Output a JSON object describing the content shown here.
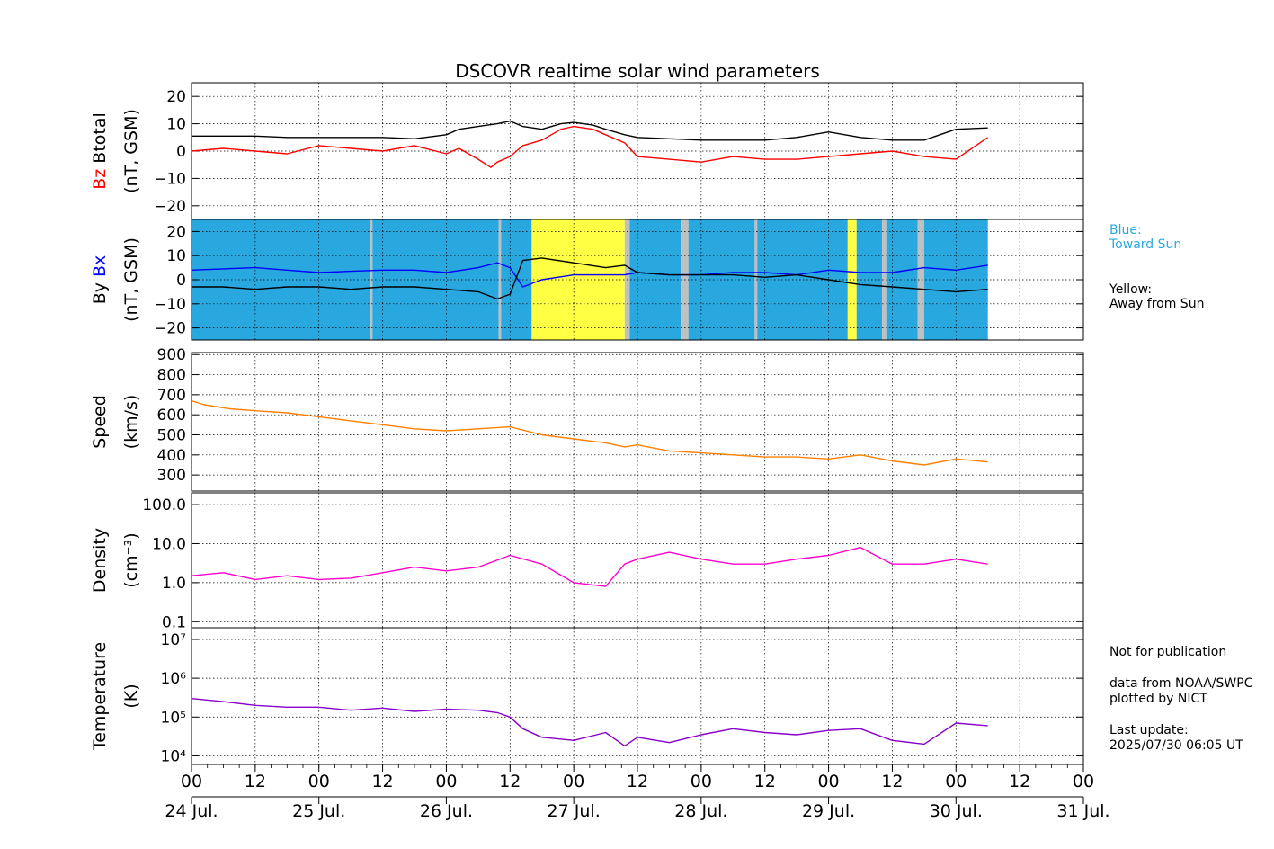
{
  "chart_data": {
    "type": "line",
    "title": "DSCOVR realtime solar wind parameters",
    "x_axis": {
      "hour_ticks": [
        "00",
        "12",
        "00",
        "12",
        "00",
        "12",
        "00",
        "12",
        "00",
        "12",
        "00",
        "12",
        "00",
        "12",
        "00"
      ],
      "day_labels": [
        "24 Jul.",
        "25 Jul.",
        "26 Jul.",
        "27 Jul.",
        "28 Jul.",
        "29 Jul.",
        "30 Jul.",
        "31 Jul."
      ],
      "range_days": [
        0,
        7
      ]
    },
    "panels": [
      {
        "id": "mag-total",
        "ylabel_parts": [
          {
            "text": "Bz",
            "color": "#ff0000"
          },
          {
            "text": "Btotal",
            "color": "#000000"
          }
        ],
        "ylabel_unit": "(nT, GSM)",
        "ylim": [
          -25,
          25
        ],
        "yticks": [
          -20,
          -10,
          0,
          10,
          20
        ],
        "ytick_labels": [
          "−20",
          "−10",
          "0",
          "10",
          "20"
        ],
        "series": [
          {
            "name": "Btotal",
            "color": "#000000",
            "x": [
              0,
              0.25,
              0.5,
              0.75,
              1,
              1.25,
              1.5,
              1.75,
              2,
              2.1,
              2.25,
              2.4,
              2.5,
              2.6,
              2.75,
              2.9,
              3,
              3.15,
              3.25,
              3.4,
              3.5,
              3.75,
              4,
              4.25,
              4.5,
              4.75,
              5,
              5.25,
              5.5,
              5.75,
              6,
              6.25
            ],
            "y": [
              5.5,
              5.5,
              5.5,
              5,
              5,
              5,
              5,
              4.5,
              6,
              8,
              9,
              10,
              11,
              9,
              8,
              10,
              10.5,
              9.5,
              8,
              6,
              5,
              4.5,
              4,
              4,
              4,
              5,
              7,
              5,
              4,
              4,
              8,
              8.5
            ]
          },
          {
            "name": "Bz",
            "color": "#ff0000",
            "x": [
              0,
              0.25,
              0.5,
              0.75,
              1,
              1.25,
              1.5,
              1.75,
              2,
              2.1,
              2.25,
              2.35,
              2.4,
              2.5,
              2.6,
              2.75,
              2.9,
              3,
              3.15,
              3.25,
              3.4,
              3.5,
              3.75,
              4,
              4.25,
              4.5,
              4.75,
              5,
              5.25,
              5.5,
              5.75,
              6,
              6.25
            ],
            "y": [
              0,
              1,
              0,
              -1,
              2,
              1,
              0,
              2,
              -1,
              1,
              -3,
              -6,
              -4,
              -2,
              2,
              4,
              8,
              9,
              8,
              6,
              3,
              -2,
              -3,
              -4,
              -2,
              -3,
              -3,
              -2,
              -1,
              0,
              -2,
              -3,
              5
            ]
          }
        ]
      },
      {
        "id": "mag-xy",
        "ylabel_parts": [
          {
            "text": "By",
            "color": "#000000"
          },
          {
            "text": "Bx",
            "color": "#0000ff"
          }
        ],
        "ylabel_unit": "(nT, GSM)",
        "ylim": [
          -25,
          25
        ],
        "yticks": [
          -20,
          -10,
          0,
          10,
          20
        ],
        "ytick_labels": [
          "−20",
          "−10",
          "0",
          "10",
          "20"
        ],
        "sector_colors": {
          "toward": "#29a8e0",
          "away": "#ffff44",
          "gap": "#c0c0c0"
        },
        "sectors": [
          {
            "start": 0,
            "end": 1.4,
            "kind": "toward"
          },
          {
            "start": 1.4,
            "end": 1.42,
            "kind": "gap"
          },
          {
            "start": 1.42,
            "end": 2.41,
            "kind": "toward"
          },
          {
            "start": 2.41,
            "end": 2.43,
            "kind": "gap"
          },
          {
            "start": 2.43,
            "end": 2.67,
            "kind": "toward"
          },
          {
            "start": 2.67,
            "end": 3.4,
            "kind": "away"
          },
          {
            "start": 3.4,
            "end": 3.44,
            "kind": "gap"
          },
          {
            "start": 3.44,
            "end": 3.84,
            "kind": "toward"
          },
          {
            "start": 3.84,
            "end": 3.9,
            "kind": "gap"
          },
          {
            "start": 3.9,
            "end": 4.42,
            "kind": "toward"
          },
          {
            "start": 4.42,
            "end": 4.44,
            "kind": "gap"
          },
          {
            "start": 4.44,
            "end": 5.15,
            "kind": "toward"
          },
          {
            "start": 5.15,
            "end": 5.22,
            "kind": "away"
          },
          {
            "start": 5.22,
            "end": 5.42,
            "kind": "toward"
          },
          {
            "start": 5.42,
            "end": 5.46,
            "kind": "gap"
          },
          {
            "start": 5.46,
            "end": 5.7,
            "kind": "toward"
          },
          {
            "start": 5.7,
            "end": 5.75,
            "kind": "gap"
          },
          {
            "start": 5.75,
            "end": 6.25,
            "kind": "toward"
          }
        ],
        "series": [
          {
            "name": "Bx",
            "color": "#0000ff",
            "x": [
              0,
              0.25,
              0.5,
              0.75,
              1,
              1.25,
              1.5,
              1.75,
              2,
              2.25,
              2.4,
              2.5,
              2.6,
              2.75,
              3,
              3.25,
              3.4,
              3.5,
              3.75,
              4,
              4.25,
              4.5,
              4.75,
              5,
              5.25,
              5.5,
              5.75,
              6,
              6.25
            ],
            "y": [
              4,
              4.5,
              5,
              4,
              3,
              3.5,
              4,
              4,
              3,
              5,
              7,
              5,
              -3,
              0,
              2,
              2,
              2,
              3,
              2,
              2,
              3,
              3,
              2,
              4,
              3,
              3,
              5,
              4,
              6
            ]
          },
          {
            "name": "By",
            "color": "#000000",
            "x": [
              0,
              0.25,
              0.5,
              0.75,
              1,
              1.25,
              1.5,
              1.75,
              2,
              2.25,
              2.4,
              2.5,
              2.6,
              2.75,
              3,
              3.25,
              3.4,
              3.5,
              3.75,
              4,
              4.25,
              4.5,
              4.75,
              5,
              5.25,
              5.5,
              5.75,
              6,
              6.25
            ],
            "y": [
              -3,
              -3,
              -4,
              -3,
              -3,
              -4,
              -3,
              -3,
              -4,
              -5,
              -8,
              -6,
              8,
              9,
              7,
              5,
              6,
              3,
              2,
              2,
              2,
              1,
              2,
              0,
              -2,
              -3,
              -4,
              -5,
              -4
            ]
          }
        ]
      },
      {
        "id": "speed",
        "ylabel_parts": [
          {
            "text": "Speed",
            "color": "#000000"
          }
        ],
        "ylabel_unit": "(km/s)",
        "ylim": [
          220,
          910
        ],
        "yticks": [
          300,
          400,
          500,
          600,
          700,
          800,
          900
        ],
        "ytick_labels": [
          "300",
          "400",
          "500",
          "600",
          "700",
          "800",
          "900"
        ],
        "series": [
          {
            "name": "Speed",
            "color": "#ff8000",
            "x": [
              0,
              0.1,
              0.3,
              0.5,
              0.75,
              1,
              1.25,
              1.5,
              1.75,
              2,
              2.25,
              2.5,
              2.75,
              3,
              3.25,
              3.4,
              3.5,
              3.75,
              4,
              4.25,
              4.5,
              4.75,
              5,
              5.25,
              5.5,
              5.75,
              6,
              6.25
            ],
            "y": [
              670,
              650,
              630,
              620,
              610,
              590,
              570,
              550,
              530,
              520,
              530,
              540,
              500,
              480,
              460,
              440,
              450,
              420,
              410,
              400,
              390,
              390,
              380,
              400,
              370,
              350,
              380,
              365
            ]
          }
        ]
      },
      {
        "id": "density",
        "log": true,
        "ylabel_parts": [
          {
            "text": "Density",
            "color": "#000000"
          }
        ],
        "ylabel_unit": "(cm⁻³)",
        "ylim": [
          0.07,
          200
        ],
        "yticks": [
          0.1,
          1,
          10,
          100
        ],
        "ytick_labels": [
          "0.1",
          "1.0",
          "10.0",
          "100.0"
        ],
        "series": [
          {
            "name": "Density",
            "color": "#ff00cc",
            "x": [
              0,
              0.25,
              0.5,
              0.75,
              1,
              1.25,
              1.5,
              1.75,
              2,
              2.25,
              2.5,
              2.75,
              3,
              3.25,
              3.4,
              3.5,
              3.75,
              4,
              4.25,
              4.5,
              4.75,
              5,
              5.25,
              5.5,
              5.75,
              6,
              6.25
            ],
            "y": [
              1.5,
              1.8,
              1.2,
              1.5,
              1.2,
              1.3,
              1.8,
              2.5,
              2,
              2.5,
              5,
              3,
              1,
              0.8,
              3,
              4,
              6,
              4,
              3,
              3,
              4,
              5,
              8,
              3,
              3,
              4,
              3
            ]
          }
        ]
      },
      {
        "id": "temperature",
        "log": true,
        "ylabel_parts": [
          {
            "text": "Temperature",
            "color": "#000000"
          }
        ],
        "ylabel_unit": "(K)",
        "ylim": [
          6000,
          20000000
        ],
        "yticks": [
          10000,
          100000,
          1000000,
          10000000
        ],
        "ytick_labels": [
          "10⁴",
          "10⁵",
          "10⁶",
          "10⁷"
        ],
        "series": [
          {
            "name": "Temperature",
            "color": "#8800cc",
            "x": [
              0,
              0.25,
              0.5,
              0.75,
              1,
              1.25,
              1.5,
              1.75,
              2,
              2.25,
              2.4,
              2.5,
              2.6,
              2.75,
              3,
              3.25,
              3.4,
              3.5,
              3.75,
              4,
              4.25,
              4.5,
              4.75,
              5,
              5.25,
              5.5,
              5.75,
              6,
              6.25
            ],
            "y": [
              300000,
              250000,
              200000,
              180000,
              180000,
              150000,
              170000,
              140000,
              160000,
              150000,
              130000,
              100000,
              50000,
              30000,
              25000,
              40000,
              18000,
              30000,
              22000,
              35000,
              50000,
              40000,
              35000,
              45000,
              50000,
              25000,
              20000,
              70000,
              60000
            ]
          }
        ]
      }
    ]
  },
  "side_notes": {
    "blue": "Blue:\nToward Sun",
    "yellow": "Yellow:\nAway from Sun",
    "publication": "Not for publication",
    "source": "data from NOAA/SWPC",
    "plotted": "plotted by NICT",
    "last_update_label": "Last update:",
    "last_update": "2025/07/30 06:05 UT"
  }
}
